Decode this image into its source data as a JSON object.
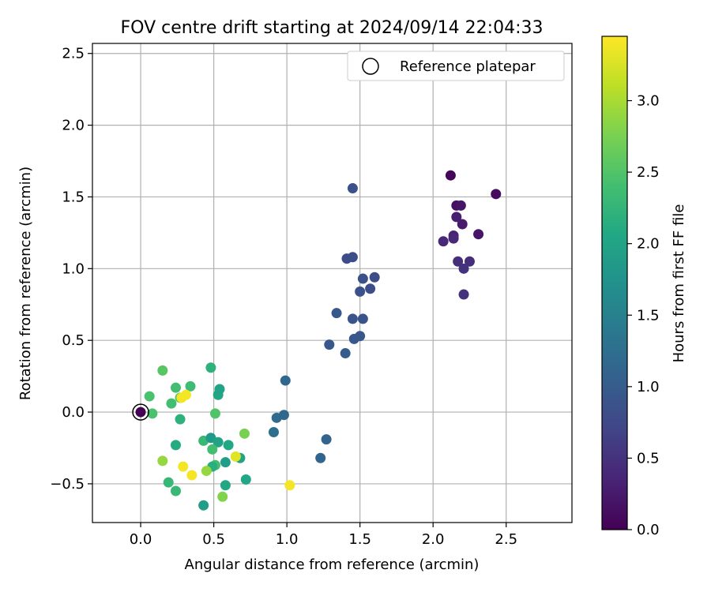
{
  "chart_data": {
    "type": "scatter",
    "title": "FOV centre drift starting at 2024/09/14 22:04:33",
    "xlabel": "Angular distance from reference (arcmin)",
    "ylabel": "Rotation from reference (arcmin)",
    "xlim": [
      -0.33,
      2.95
    ],
    "ylim": [
      -0.77,
      2.57
    ],
    "xticks": [
      0.0,
      0.5,
      1.0,
      1.5,
      2.0,
      2.5
    ],
    "xtick_labels": [
      "0.0",
      "0.5",
      "1.0",
      "1.5",
      "2.0",
      "2.5"
    ],
    "yticks": [
      -0.5,
      0.0,
      0.5,
      1.0,
      1.5,
      2.0,
      2.5
    ],
    "ytick_labels": [
      "−0.5",
      "0.0",
      "0.5",
      "1.0",
      "1.5",
      "2.0",
      "2.5"
    ],
    "grid": true,
    "legend": {
      "placement": "top-right",
      "entries": [
        "Reference platepar"
      ]
    },
    "reference_point": {
      "x": 0.0,
      "y": 0.0,
      "label": "Reference platepar"
    },
    "colorbar": {
      "label": "Hours from first FF file",
      "colormap": "viridis",
      "range": [
        0.0,
        3.45
      ],
      "ticks": [
        0.0,
        0.5,
        1.0,
        1.5,
        2.0,
        2.5,
        3.0
      ],
      "tick_labels": [
        "0.0",
        "0.5",
        "1.0",
        "1.5",
        "2.0",
        "2.5",
        "3.0"
      ]
    },
    "points": [
      {
        "x": 0.0,
        "y": 0.0,
        "hours": 0.0
      },
      {
        "x": 2.12,
        "y": 1.65,
        "hours": 0.05
      },
      {
        "x": 2.43,
        "y": 1.52,
        "hours": 0.1
      },
      {
        "x": 2.16,
        "y": 1.44,
        "hours": 0.15
      },
      {
        "x": 2.19,
        "y": 1.44,
        "hours": 0.2
      },
      {
        "x": 2.31,
        "y": 1.24,
        "hours": 0.2
      },
      {
        "x": 2.2,
        "y": 1.31,
        "hours": 0.25
      },
      {
        "x": 2.16,
        "y": 1.36,
        "hours": 0.3
      },
      {
        "x": 2.14,
        "y": 1.23,
        "hours": 0.35
      },
      {
        "x": 2.14,
        "y": 1.21,
        "hours": 0.4
      },
      {
        "x": 2.07,
        "y": 1.19,
        "hours": 0.4
      },
      {
        "x": 2.17,
        "y": 1.05,
        "hours": 0.45
      },
      {
        "x": 2.25,
        "y": 1.05,
        "hours": 0.45
      },
      {
        "x": 2.21,
        "y": 1.0,
        "hours": 0.5
      },
      {
        "x": 2.21,
        "y": 0.82,
        "hours": 0.5
      },
      {
        "x": 1.45,
        "y": 1.56,
        "hours": 0.85
      },
      {
        "x": 1.41,
        "y": 1.07,
        "hours": 0.8
      },
      {
        "x": 1.45,
        "y": 1.08,
        "hours": 0.8
      },
      {
        "x": 1.52,
        "y": 0.93,
        "hours": 0.85
      },
      {
        "x": 1.6,
        "y": 0.94,
        "hours": 0.8
      },
      {
        "x": 1.5,
        "y": 0.84,
        "hours": 0.85
      },
      {
        "x": 1.57,
        "y": 0.86,
        "hours": 0.8
      },
      {
        "x": 1.34,
        "y": 0.69,
        "hours": 0.95
      },
      {
        "x": 1.45,
        "y": 0.65,
        "hours": 0.9
      },
      {
        "x": 1.52,
        "y": 0.65,
        "hours": 0.9
      },
      {
        "x": 1.29,
        "y": 0.47,
        "hours": 0.95
      },
      {
        "x": 1.46,
        "y": 0.51,
        "hours": 0.95
      },
      {
        "x": 1.5,
        "y": 0.53,
        "hours": 0.95
      },
      {
        "x": 1.4,
        "y": 0.41,
        "hours": 1.0
      },
      {
        "x": 0.99,
        "y": 0.22,
        "hours": 1.15
      },
      {
        "x": 0.93,
        "y": -0.04,
        "hours": 1.2
      },
      {
        "x": 0.98,
        "y": -0.02,
        "hours": 1.15
      },
      {
        "x": 0.91,
        "y": -0.14,
        "hours": 1.25
      },
      {
        "x": 1.27,
        "y": -0.19,
        "hours": 1.1
      },
      {
        "x": 1.23,
        "y": -0.32,
        "hours": 1.1
      },
      {
        "x": 1.02,
        "y": -0.51,
        "hours": 3.4
      },
      {
        "x": 0.48,
        "y": 0.31,
        "hours": 2.2
      },
      {
        "x": 0.15,
        "y": 0.29,
        "hours": 2.55
      },
      {
        "x": 0.06,
        "y": 0.11,
        "hours": 2.45
      },
      {
        "x": 0.08,
        "y": -0.01,
        "hours": 2.45
      },
      {
        "x": 0.24,
        "y": 0.17,
        "hours": 2.4
      },
      {
        "x": 0.34,
        "y": 0.18,
        "hours": 2.35
      },
      {
        "x": 0.21,
        "y": 0.06,
        "hours": 2.4
      },
      {
        "x": 0.27,
        "y": 0.1,
        "hours": 2.5
      },
      {
        "x": 0.28,
        "y": 0.1,
        "hours": 3.4
      },
      {
        "x": 0.31,
        "y": 0.12,
        "hours": 3.4
      },
      {
        "x": 0.27,
        "y": -0.05,
        "hours": 2.2
      },
      {
        "x": 0.53,
        "y": 0.12,
        "hours": 2.05
      },
      {
        "x": 0.54,
        "y": 0.16,
        "hours": 2.0
      },
      {
        "x": 0.51,
        "y": -0.01,
        "hours": 2.5
      },
      {
        "x": 0.24,
        "y": -0.23,
        "hours": 2.1
      },
      {
        "x": 0.43,
        "y": -0.2,
        "hours": 2.3
      },
      {
        "x": 0.48,
        "y": -0.18,
        "hours": 1.85
      },
      {
        "x": 0.53,
        "y": -0.21,
        "hours": 2.0
      },
      {
        "x": 0.49,
        "y": -0.26,
        "hours": 2.4
      },
      {
        "x": 0.6,
        "y": -0.23,
        "hours": 2.05
      },
      {
        "x": 0.58,
        "y": -0.35,
        "hours": 1.9
      },
      {
        "x": 0.51,
        "y": -0.37,
        "hours": 2.4
      },
      {
        "x": 0.49,
        "y": -0.38,
        "hours": 2.15
      },
      {
        "x": 0.68,
        "y": -0.32,
        "hours": 2.0
      },
      {
        "x": 0.65,
        "y": -0.31,
        "hours": 3.3
      },
      {
        "x": 0.71,
        "y": -0.15,
        "hours": 2.75
      },
      {
        "x": 0.15,
        "y": -0.34,
        "hours": 2.9
      },
      {
        "x": 0.29,
        "y": -0.38,
        "hours": 3.4
      },
      {
        "x": 0.35,
        "y": -0.44,
        "hours": 3.4
      },
      {
        "x": 0.45,
        "y": -0.41,
        "hours": 2.9
      },
      {
        "x": 0.19,
        "y": -0.49,
        "hours": 2.3
      },
      {
        "x": 0.24,
        "y": -0.55,
        "hours": 2.3
      },
      {
        "x": 0.58,
        "y": -0.51,
        "hours": 2.05
      },
      {
        "x": 0.72,
        "y": -0.47,
        "hours": 2.05
      },
      {
        "x": 0.43,
        "y": -0.65,
        "hours": 1.9
      },
      {
        "x": 0.56,
        "y": -0.59,
        "hours": 2.8
      }
    ]
  }
}
